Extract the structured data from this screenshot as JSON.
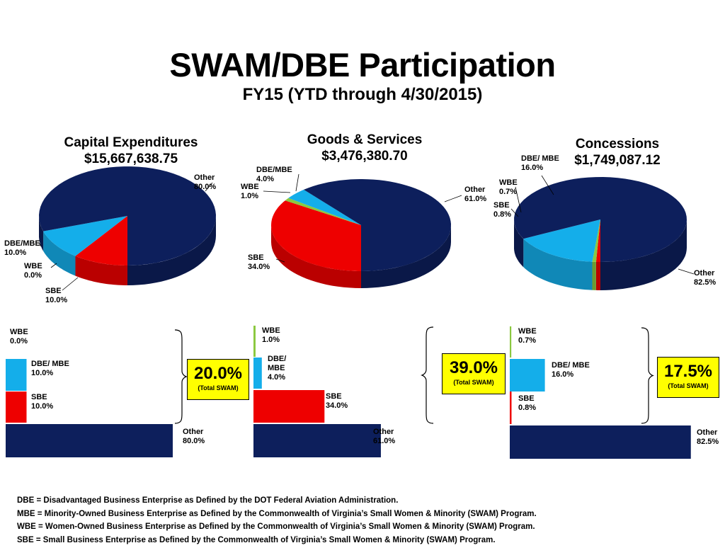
{
  "title": "SWAM/DBE Participation",
  "subtitle": "FY15 (YTD through 4/30/2015)",
  "colors": {
    "other": "#0d1f5c",
    "sbe": "#ee0000",
    "dbe_mbe": "#14aeea",
    "wbe": "#8bc83f",
    "swam_box": "#ffff00"
  },
  "chart_data": [
    {
      "type": "pie",
      "title": "Capital Expenditures",
      "subtitle": "$15,667,638.75",
      "slices": [
        {
          "name": "Other",
          "value": 80.0,
          "label": "80.0%"
        },
        {
          "name": "SBE",
          "value": 10.0,
          "label": "10.0%"
        },
        {
          "name": "WBE",
          "value": 0.0,
          "label": "0.0%"
        },
        {
          "name": "DBE/MBE",
          "value": 10.0,
          "label": "10.0%"
        }
      ],
      "bars": [
        {
          "name": "WBE",
          "value": 0.0,
          "label": "0.0%"
        },
        {
          "name": "DBE/ MBE",
          "value": 10.0,
          "label": "10.0%"
        },
        {
          "name": "SBE",
          "value": 10.0,
          "label": "10.0%"
        },
        {
          "name": "Other",
          "value": 80.0,
          "label": "80.0%"
        }
      ],
      "total_swam": "20.0%",
      "total_swam_caption": "(Total SWAM)"
    },
    {
      "type": "pie",
      "title": "Goods & Services",
      "subtitle": "$3,476,380.70",
      "slices": [
        {
          "name": "Other",
          "value": 61.0,
          "label": "61.0%"
        },
        {
          "name": "SBE",
          "value": 34.0,
          "label": "34.0%"
        },
        {
          "name": "WBE",
          "value": 1.0,
          "label": "1.0%"
        },
        {
          "name": "DBE/MBE",
          "value": 4.0,
          "label": "4.0%"
        }
      ],
      "bars": [
        {
          "name": "WBE",
          "value": 1.0,
          "label": "1.0%"
        },
        {
          "name": "DBE/ MBE",
          "value": 4.0,
          "label": "4.0%"
        },
        {
          "name": "SBE",
          "value": 34.0,
          "label": "34.0%"
        },
        {
          "name": "Other",
          "value": 61.0,
          "label": "61.0%"
        }
      ],
      "total_swam": "39.0%",
      "total_swam_caption": "(Total SWAM)"
    },
    {
      "type": "pie",
      "title": "Concessions",
      "subtitle": "$1,749,087.12",
      "slices": [
        {
          "name": "Other",
          "value": 82.5,
          "label": "82.5%"
        },
        {
          "name": "SBE",
          "value": 0.8,
          "label": "0.8%"
        },
        {
          "name": "WBE",
          "value": 0.7,
          "label": "0.7%"
        },
        {
          "name": "DBE/ MBE",
          "value": 16.0,
          "label": "16.0%"
        }
      ],
      "bars": [
        {
          "name": "WBE",
          "value": 0.7,
          "label": "0.7%"
        },
        {
          "name": "DBE/ MBE",
          "value": 16.0,
          "label": "16.0%"
        },
        {
          "name": "SBE",
          "value": 0.8,
          "label": "0.8%"
        },
        {
          "name": "Other",
          "value": 82.5,
          "label": "82.5%"
        }
      ],
      "total_swam": "17.5%",
      "total_swam_caption": "(Total SWAM)"
    }
  ],
  "footnotes": [
    "DBE = Disadvantaged Business Enterprise as Defined by the DOT Federal Aviation Administration.",
    "MBE = Minority-Owned Business Enterprise as Defined by the Commonwealth of Virginia’s Small Women & Minority (SWAM) Program.",
    "WBE = Women-Owned Business Enterprise as Defined by the Commonwealth of Virginia’s Small Women & Minority (SWAM) Program.",
    "SBE = Small Business Enterprise as Defined by the Commonwealth of Virginia’s Small Women & Minority (SWAM) Program."
  ]
}
